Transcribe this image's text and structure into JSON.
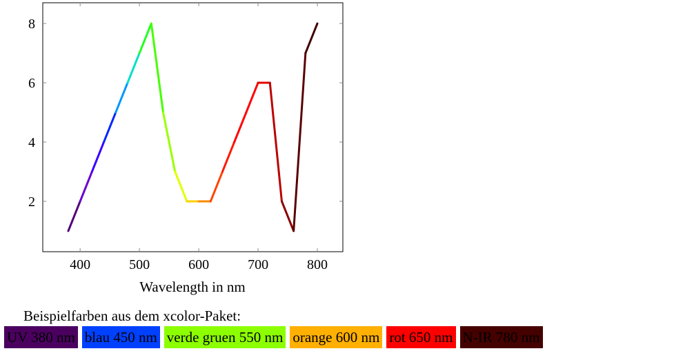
{
  "chart_data": {
    "type": "line",
    "title": "",
    "xlabel": "Wavelength in nm",
    "ylabel": "",
    "xlim": [
      337,
      843
    ],
    "ylim": [
      0.3,
      8.7
    ],
    "xticks": [
      400,
      500,
      600,
      700,
      800
    ],
    "yticks": [
      2,
      4,
      6,
      8
    ],
    "grid": false,
    "x": [
      380,
      400,
      420,
      440,
      460,
      480,
      500,
      520,
      540,
      560,
      580,
      600,
      620,
      640,
      660,
      680,
      700,
      720,
      740,
      760,
      780,
      800
    ],
    "y": [
      1,
      2,
      3,
      4,
      5,
      6,
      7,
      8,
      5,
      3,
      2,
      2,
      2,
      3,
      4,
      5,
      6,
      6,
      2,
      1,
      7,
      8
    ],
    "segment_colors": [
      "#52007a",
      "#6a00d0",
      "#3a00ff",
      "#0026ff",
      "#0096ff",
      "#00e0c8",
      "#22ff22",
      "#44ff00",
      "#99ff00",
      "#e0ff00",
      "#ffd000",
      "#ff8800",
      "#ff4400",
      "#ff1a00",
      "#ff0000",
      "#ff0000",
      "#e00000",
      "#bb0000",
      "#8a0000",
      "#5a0000",
      "#420000"
    ]
  },
  "legend_note": "Beispielfarben aus dem xcolor-Paket:",
  "swatches": [
    {
      "label": "UV 380 nm",
      "color": "#4b0060"
    },
    {
      "label": "blau 450 nm",
      "color": "#0040ff"
    },
    {
      "label": "verde gruen 550 nm",
      "color": "#8cff00"
    },
    {
      "label": "orange 600 nm",
      "color": "#ffb000"
    },
    {
      "label": "rot 650 nm",
      "color": "#ff0000"
    },
    {
      "label": "N-IR 780 nm",
      "color": "#450000"
    }
  ]
}
